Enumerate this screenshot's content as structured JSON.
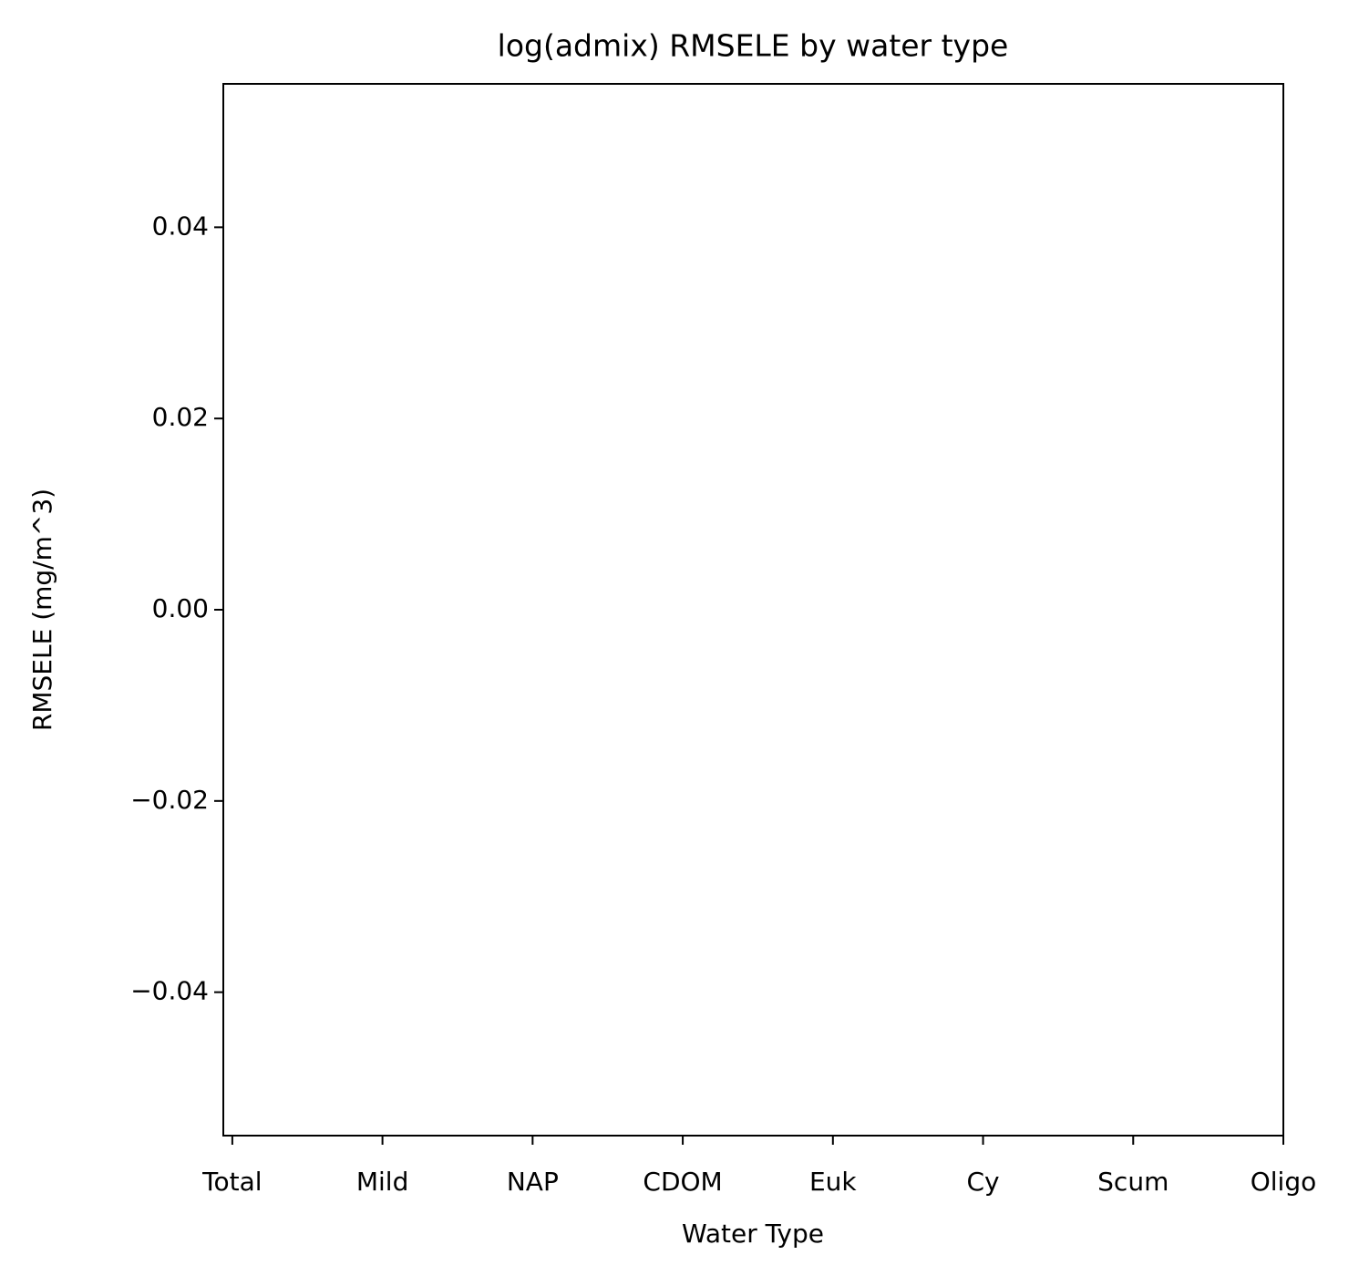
{
  "chart_data": {
    "type": "bar",
    "title": "log(admix) RMSELE by water type",
    "xlabel": "Water Type",
    "ylabel": "RMSELE (mg/m^3)",
    "categories": [
      "Total",
      "Mild",
      "NAP",
      "CDOM",
      "Euk",
      "Cy",
      "Scum",
      "Oligo"
    ],
    "xlim": [
      -0.06,
      7
    ],
    "ylim": [
      -0.055,
      0.055
    ],
    "yticks": [
      {
        "value": -0.04,
        "label": "−0.04"
      },
      {
        "value": -0.02,
        "label": "−0.02"
      },
      {
        "value": 0,
        "label": "0.00"
      },
      0.02,
      0.04
    ]
  }
}
